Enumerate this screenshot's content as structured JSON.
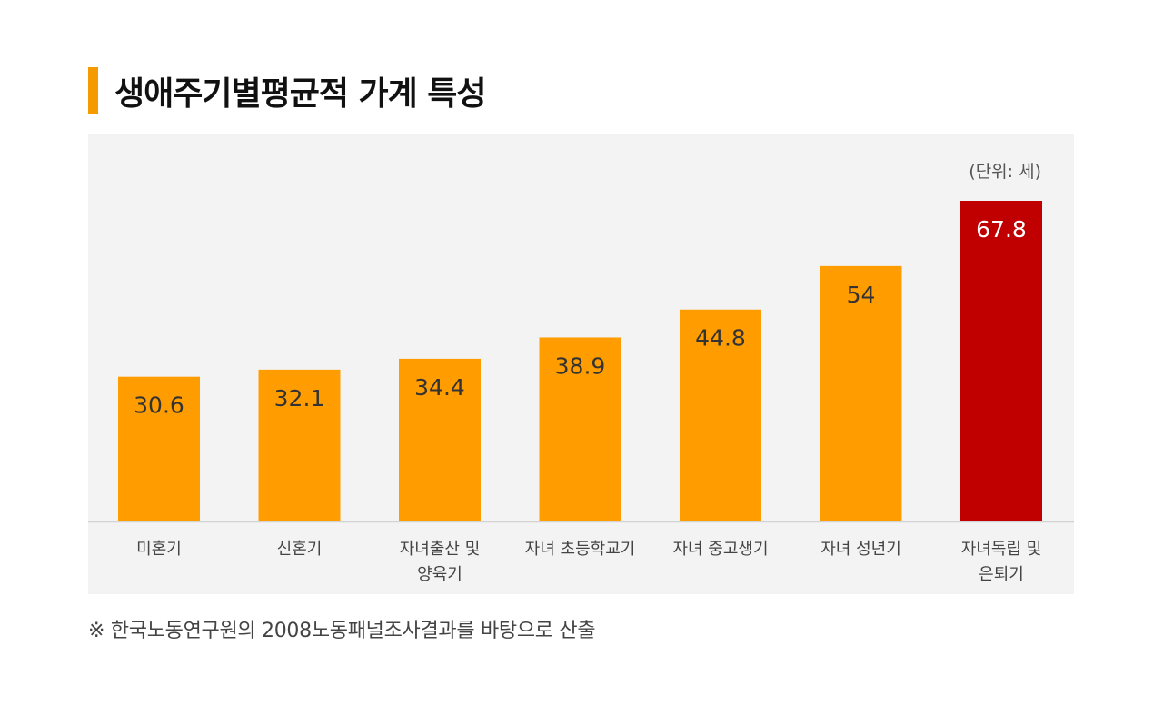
{
  "header": {
    "title": "생애주기별평균적 가계 특성"
  },
  "colors": {
    "accent": "#f59a00",
    "bar_default": "#ff9d00",
    "bar_highlight": "#c00000",
    "panel_bg": "#f3f3f3",
    "axis_line": "#d3d3d3"
  },
  "chart_data": {
    "type": "bar",
    "unit_label": "(단위: 세)",
    "categories": [
      [
        "미혼기"
      ],
      [
        "신혼기"
      ],
      [
        "자녀출산 및",
        "양육기"
      ],
      [
        "자녀 초등학교기"
      ],
      [
        "자녀 중고생기"
      ],
      [
        "자녀 성년기"
      ],
      [
        "자녀독립 및",
        "은퇴기"
      ]
    ],
    "values": [
      30.6,
      32.1,
      34.4,
      38.9,
      44.8,
      54,
      67.8
    ],
    "value_labels": [
      "30.6",
      "32.1",
      "34.4",
      "38.9",
      "44.8",
      "54",
      "67.8"
    ],
    "highlight_index": 6,
    "ylim": [
      0,
      67.8
    ],
    "grid": false,
    "legend": "none"
  },
  "footnote": "※ 한국노동연구원의 2008노동패널조사결과를 바탕으로 산출"
}
